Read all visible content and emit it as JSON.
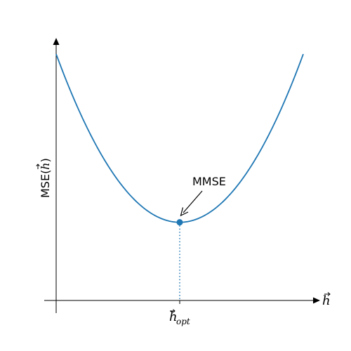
{
  "chart_data": {
    "type": "line",
    "title": "",
    "xlabel": "h",
    "ylabel_prefix": "MSE(",
    "ylabel_var": "h",
    "ylabel_suffix": ")",
    "xlim": [
      -1.2,
      1.8
    ],
    "ylim": [
      -0.1,
      2.9
    ],
    "grid": false,
    "x_tick": {
      "value": 0,
      "label_main": "h",
      "label_sub": "opt"
    },
    "curve": {
      "x": [
        -1.0,
        -0.9,
        -0.8,
        -0.7,
        -0.6,
        -0.5,
        -0.4,
        -0.3,
        -0.2,
        -0.1,
        0.0,
        0.1,
        0.2,
        0.3,
        0.4,
        0.5,
        0.6,
        0.7,
        0.8,
        0.9,
        1.0
      ],
      "y": [
        2.9,
        2.55,
        2.22,
        1.93,
        1.68,
        1.45,
        1.26,
        1.11,
        1.0,
        0.94,
        0.92,
        0.94,
        1.0,
        1.11,
        1.26,
        1.45,
        1.68,
        1.93,
        2.22,
        2.55,
        2.9
      ]
    },
    "minimum": {
      "x": 0,
      "y": 0.92
    },
    "annotation": {
      "text": "MMSE",
      "points_to": {
        "x": 0,
        "y": 0.92
      }
    },
    "colors": {
      "line": "#1f77b4",
      "axes": "#000000"
    }
  }
}
